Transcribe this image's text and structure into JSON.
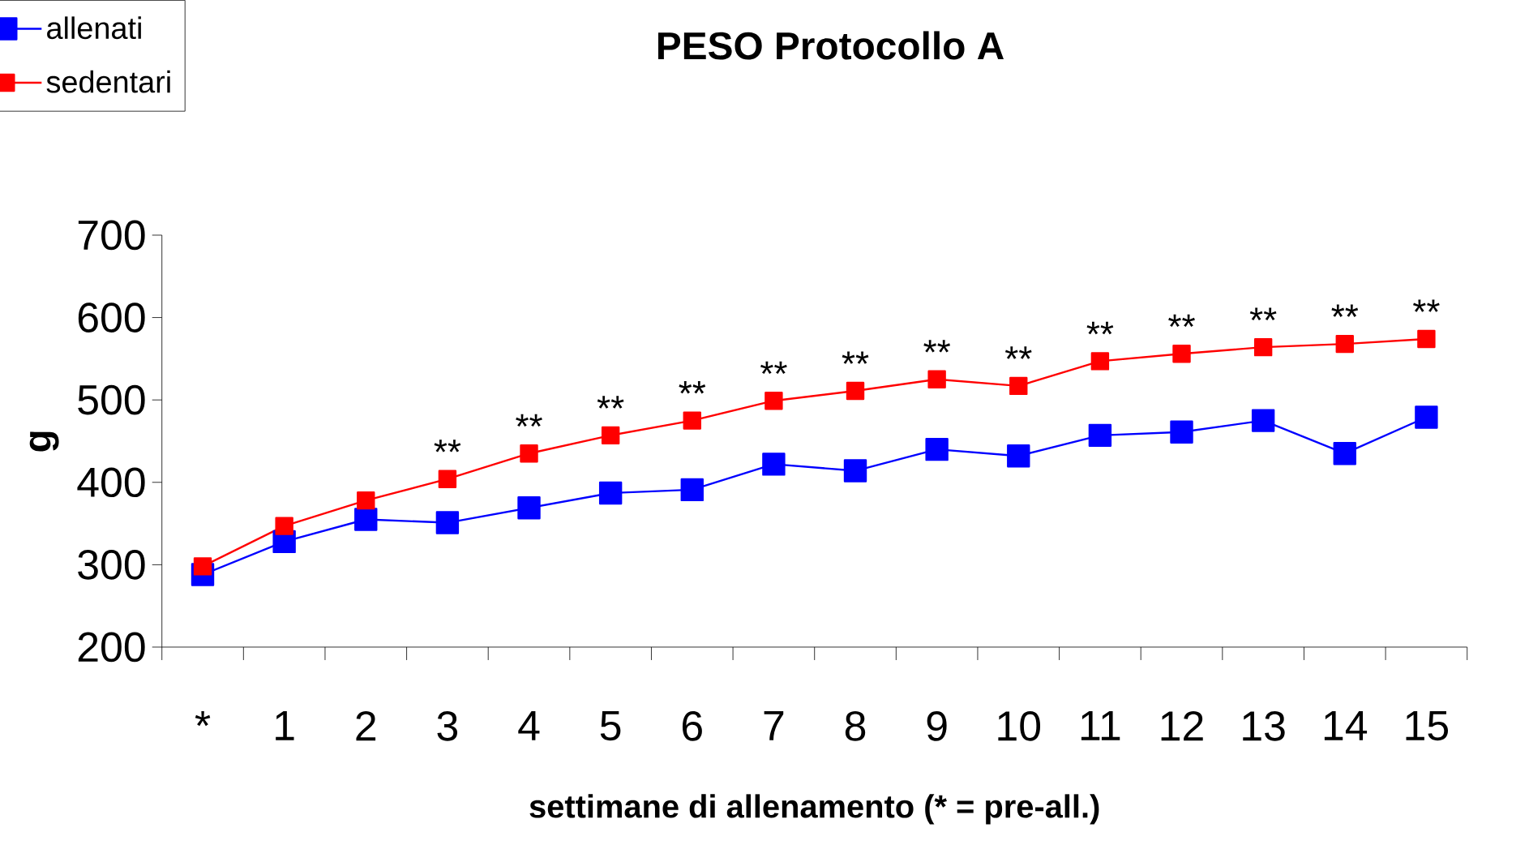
{
  "chart_data": {
    "type": "line",
    "title": "PESO Protocollo A",
    "xlabel": "settimane di allenamento (* = pre-all.)",
    "ylabel": "g",
    "categories": [
      "*",
      "1",
      "2",
      "3",
      "4",
      "5",
      "6",
      "7",
      "8",
      "9",
      "10",
      "11",
      "12",
      "13",
      "14",
      "15"
    ],
    "series": [
      {
        "name": "allenati",
        "color": "#0000ff",
        "values": [
          288,
          328,
          355,
          351,
          369,
          387,
          391,
          422,
          414,
          440,
          432,
          457,
          461,
          475,
          435,
          479
        ]
      },
      {
        "name": "sedentari",
        "color": "#ff0000",
        "values": [
          298,
          347,
          378,
          404,
          435,
          457,
          475,
          499,
          511,
          525,
          517,
          547,
          556,
          564,
          568,
          574
        ]
      }
    ],
    "ylim": [
      200,
      700
    ],
    "yticks": [
      200,
      300,
      400,
      500,
      600,
      700
    ],
    "annotations": [
      {
        "text": "**",
        "x": "3",
        "y": 404
      },
      {
        "text": "**",
        "x": "4",
        "y": 435
      },
      {
        "text": "**",
        "x": "5",
        "y": 457
      },
      {
        "text": "**",
        "x": "6",
        "y": 475
      },
      {
        "text": "**",
        "x": "7",
        "y": 499
      },
      {
        "text": "**",
        "x": "8",
        "y": 511
      },
      {
        "text": "**",
        "x": "9",
        "y": 525
      },
      {
        "text": "**",
        "x": "10",
        "y": 517
      },
      {
        "text": "**",
        "x": "11",
        "y": 547
      },
      {
        "text": "**",
        "x": "12",
        "y": 556
      },
      {
        "text": "**",
        "x": "13",
        "y": 564
      },
      {
        "text": "**",
        "x": "14",
        "y": 568
      },
      {
        "text": "**",
        "x": "15",
        "y": 574
      }
    ],
    "legend": "top left",
    "marker": "square",
    "line_style": "solid",
    "grid": false
  }
}
